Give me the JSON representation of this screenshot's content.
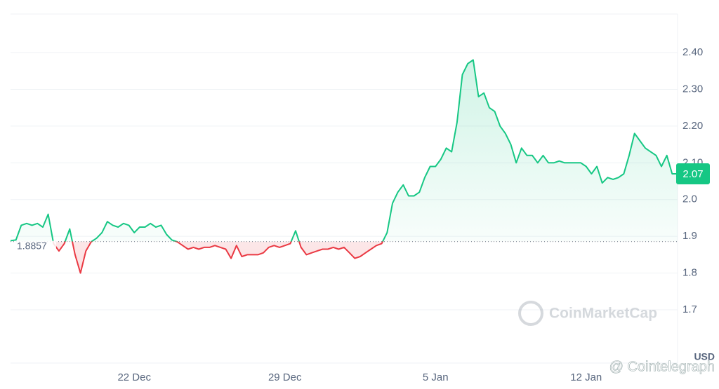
{
  "chart_data": {
    "type": "line",
    "currency": "USD",
    "watermark": "CoinMarketCap",
    "source": "@ Cointelegraph",
    "baseline": 1.8857,
    "current_price": 2.07,
    "up_color": "#16c784",
    "down_color": "#ea3943",
    "grid": true,
    "ylim": [
      1.555,
      2.505
    ],
    "yticks": [
      {
        "value": 1.7,
        "label": "1.7"
      },
      1.8,
      1.9,
      {
        "value": 2,
        "label": "2.0"
      },
      {
        "value": 2.1,
        "label": "2.10"
      },
      {
        "value": 2.2,
        "label": "2.20"
      },
      {
        "value": 2.3,
        "label": "2.30"
      },
      {
        "value": 2.4,
        "label": "2.40"
      }
    ],
    "categories": [
      null,
      null,
      null,
      null,
      null,
      null,
      null,
      null,
      null,
      null,
      null,
      null,
      null,
      null,
      null,
      null,
      null,
      null,
      null,
      null,
      null,
      null,
      null,
      "22 Dec",
      null,
      null,
      null,
      null,
      null,
      null,
      null,
      null,
      null,
      null,
      null,
      null,
      null,
      null,
      null,
      null,
      null,
      null,
      null,
      null,
      null,
      null,
      null,
      null,
      null,
      null,
      null,
      "29 Dec",
      null,
      null,
      null,
      null,
      null,
      null,
      null,
      null,
      null,
      null,
      null,
      null,
      null,
      null,
      null,
      null,
      null,
      null,
      null,
      null,
      null,
      null,
      null,
      null,
      null,
      null,
      null,
      "5 Jan",
      null,
      null,
      null,
      null,
      null,
      null,
      null,
      null,
      null,
      null,
      null,
      null,
      null,
      null,
      null,
      null,
      null,
      null,
      null,
      null,
      null,
      null,
      null,
      null,
      null,
      null,
      null,
      "12 Jan",
      null,
      null,
      null,
      null,
      null,
      null,
      null,
      null,
      null,
      null,
      null,
      null,
      null,
      null,
      null,
      null,
      null
    ],
    "values": [
      1.888,
      1.89,
      1.93,
      1.935,
      1.93,
      1.935,
      1.925,
      1.96,
      1.88,
      1.86,
      1.88,
      1.92,
      1.85,
      1.8,
      1.86,
      1.885,
      1.895,
      1.91,
      1.94,
      1.93,
      1.925,
      1.935,
      1.93,
      1.91,
      1.925,
      1.925,
      1.935,
      1.925,
      1.93,
      1.905,
      1.89,
      1.885,
      1.875,
      1.865,
      1.87,
      1.865,
      1.87,
      1.87,
      1.875,
      1.87,
      1.865,
      1.84,
      1.875,
      1.845,
      1.85,
      1.85,
      1.85,
      1.855,
      1.87,
      1.875,
      1.87,
      1.875,
      1.88,
      1.915,
      1.87,
      1.85,
      1.855,
      1.86,
      1.865,
      1.865,
      1.87,
      1.865,
      1.87,
      1.855,
      1.84,
      1.845,
      1.855,
      1.865,
      1.875,
      1.88,
      1.91,
      1.99,
      2.02,
      2.04,
      2.01,
      2.01,
      2.02,
      2.06,
      2.09,
      2.09,
      2.11,
      2.14,
      2.13,
      2.21,
      2.34,
      2.37,
      2.38,
      2.28,
      2.29,
      2.25,
      2.24,
      2.2,
      2.18,
      2.15,
      2.1,
      2.14,
      2.12,
      2.12,
      2.1,
      2.12,
      2.1,
      2.1,
      2.105,
      2.1,
      2.1,
      2.1,
      2.1,
      2.09,
      2.07,
      2.09,
      2.045,
      2.06,
      2.055,
      2.06,
      2.07,
      2.12,
      2.18,
      2.16,
      2.14,
      2.13,
      2.12,
      2.09,
      2.12,
      2.07,
      2.07
    ]
  }
}
